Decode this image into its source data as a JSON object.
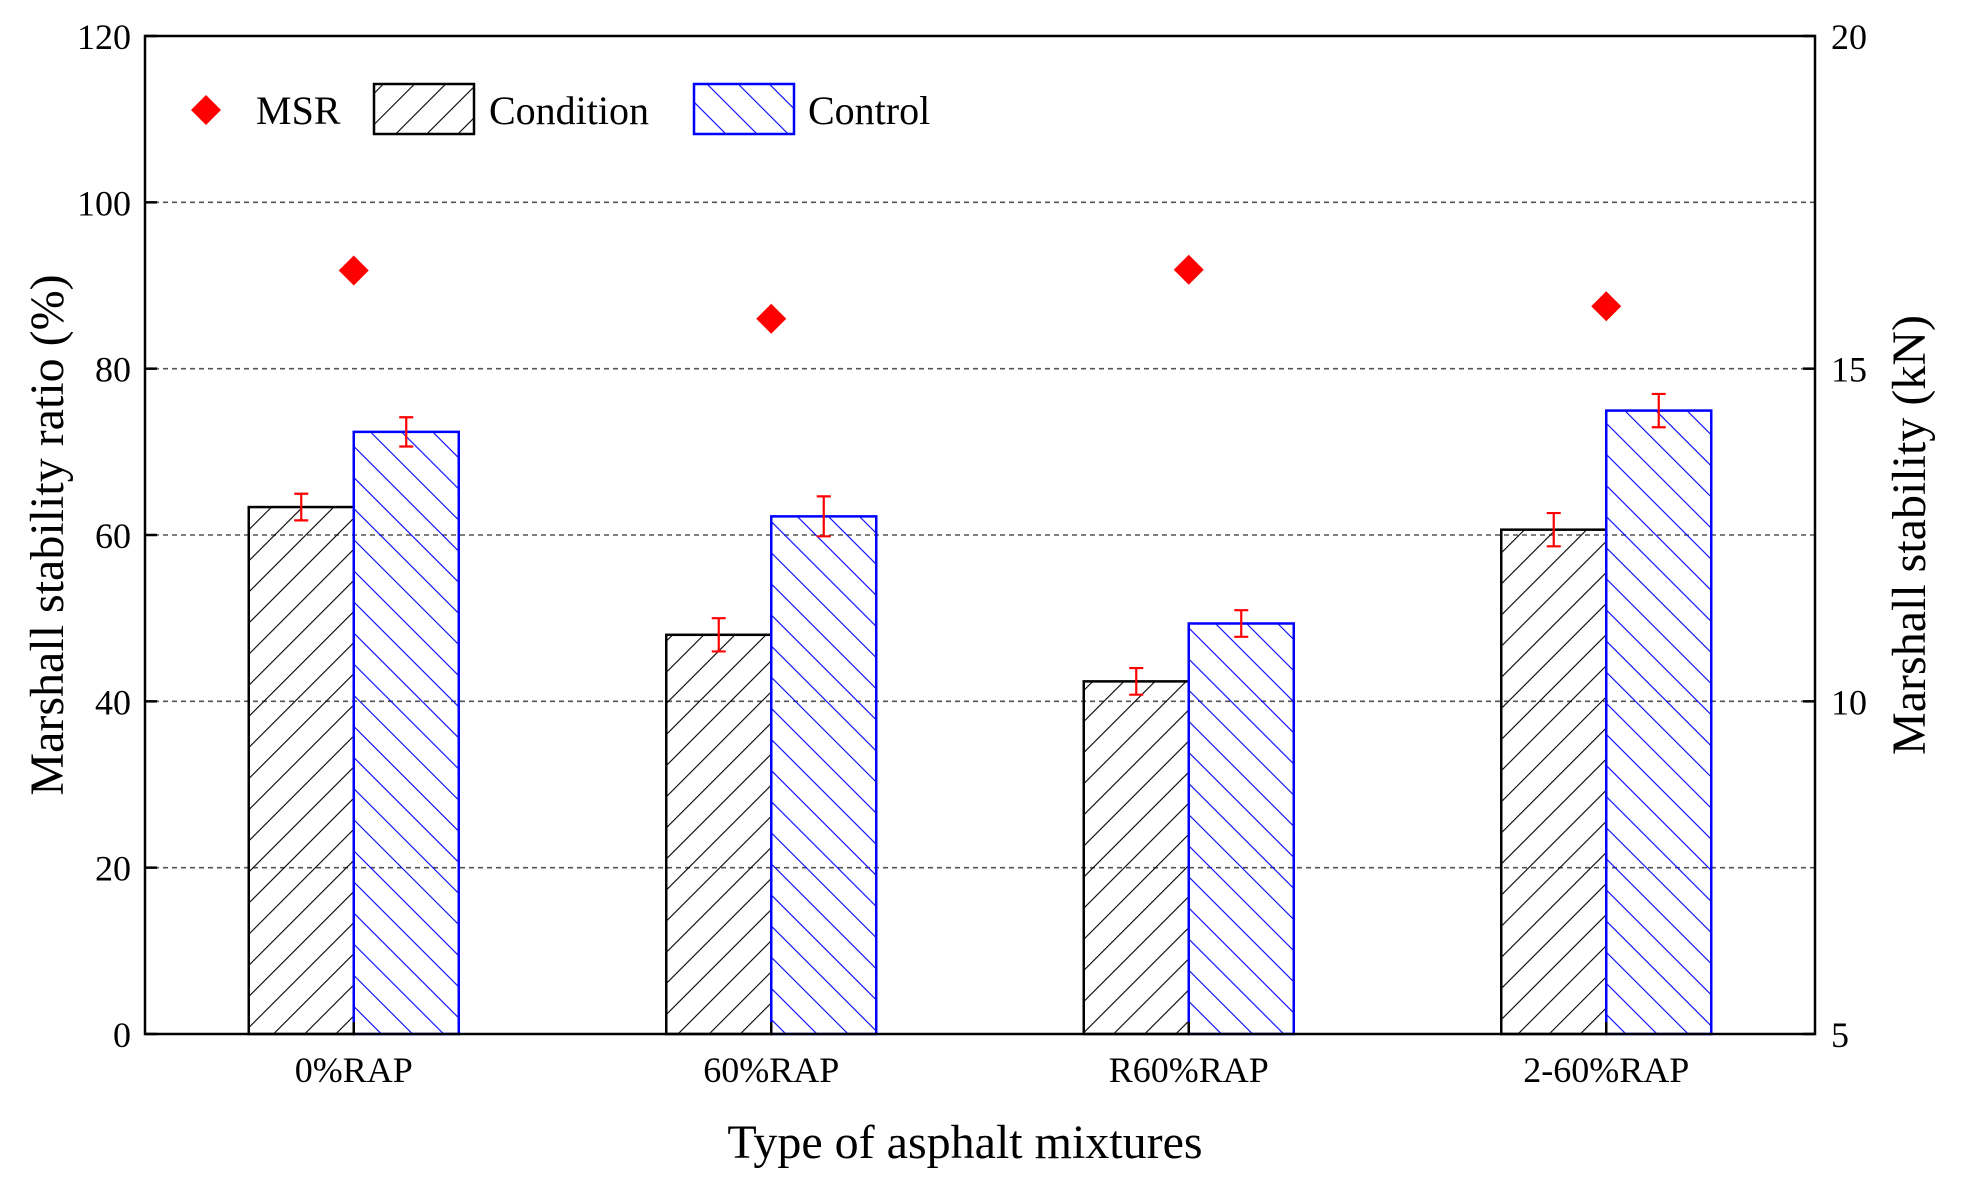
{
  "chart_data": {
    "type": "bar",
    "categories": [
      "0%RAP",
      "60%RAP",
      "R60%RAP",
      "2-60%RAP"
    ],
    "xlabel": "Type of asphalt mixtures",
    "ylabel": "Marshall stability ratio (%)",
    "ylabel_right": "Marshall stability (kN)",
    "ylim": [
      0,
      120
    ],
    "yticks": [
      "0",
      "20",
      "40",
      "60",
      "80",
      "100",
      "120"
    ],
    "ylim_right": [
      5,
      20
    ],
    "yticks_right": [
      "5",
      "10",
      "15",
      "20"
    ],
    "grid": "horizontal dashed",
    "legend": {
      "placement": "top-left",
      "items": [
        {
          "label": "MSR",
          "marker": "diamond",
          "color": "#ff0000"
        },
        {
          "label": "Condition",
          "hatch": "forward-diagonal",
          "color": "#000000"
        },
        {
          "label": "Control",
          "hatch": "backward-diagonal",
          "color": "#0000ff"
        }
      ]
    },
    "series": [
      {
        "name": "Condition",
        "axis": "right",
        "unit": "kN",
        "values": [
          12.92,
          11.0,
          10.3,
          12.58
        ],
        "errors": [
          0.2,
          0.25,
          0.2,
          0.25
        ]
      },
      {
        "name": "Control",
        "axis": "right",
        "unit": "kN",
        "values": [
          14.05,
          12.78,
          11.17,
          14.37
        ],
        "errors": [
          0.22,
          0.3,
          0.2,
          0.25
        ]
      },
      {
        "name": "MSR",
        "axis": "left",
        "unit": "%",
        "values": [
          91.8,
          86.0,
          91.9,
          87.5
        ]
      }
    ]
  }
}
